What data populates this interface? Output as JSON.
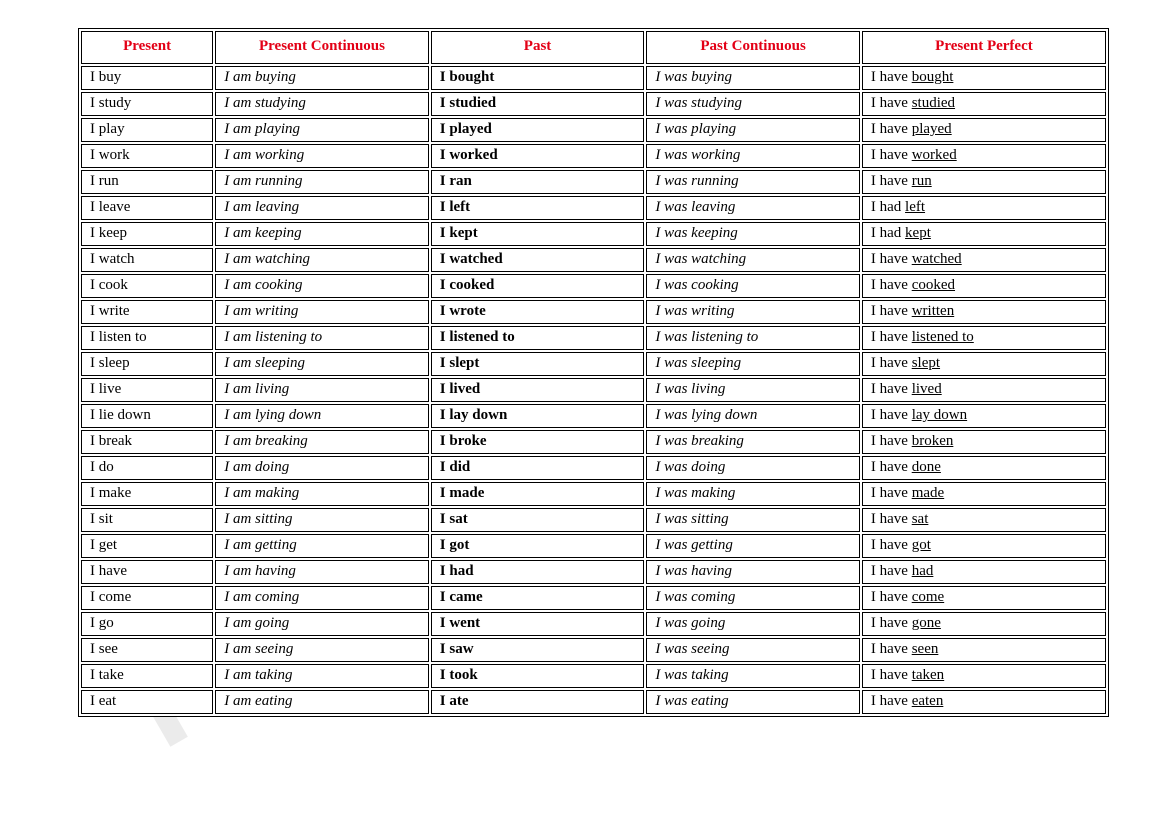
{
  "watermark_text": "Printables.com",
  "table": {
    "headers": [
      "Present",
      "Present Continuous",
      "Past",
      "Past Continuous",
      "Present Perfect"
    ],
    "header_color": "#e30016",
    "font_family": "Comic Sans MS",
    "border_color": "#000000",
    "background_color": "#ffffff",
    "column_styles": [
      {
        "italic": false,
        "bold": false
      },
      {
        "italic": true,
        "bold": false
      },
      {
        "italic": false,
        "bold": true
      },
      {
        "italic": true,
        "bold": false
      },
      {
        "italic": false,
        "bold": false,
        "underline_participle": true
      }
    ],
    "rows": [
      {
        "present": "I buy",
        "pres_cont": "I am buying",
        "past": "I bought",
        "past_cont": "I was buying",
        "perf_aux": "I have",
        "perf_pp": "bought"
      },
      {
        "present": "I study",
        "pres_cont": "I am studying",
        "past": "I studied",
        "past_cont": "I was studying",
        "perf_aux": "I have",
        "perf_pp": "studied"
      },
      {
        "present": "I play",
        "pres_cont": "I am playing",
        "past": "I played",
        "past_cont": "I was playing",
        "perf_aux": "I have",
        "perf_pp": "played"
      },
      {
        "present": "I work",
        "pres_cont": "I am working",
        "past": "I worked",
        "past_cont": "I was working",
        "perf_aux": "I have",
        "perf_pp": "worked"
      },
      {
        "present": "I run",
        "pres_cont": "I am running",
        "past": "I ran",
        "past_cont": "I was running",
        "perf_aux": "I have",
        "perf_pp": "run"
      },
      {
        "present": "I leave",
        "pres_cont": "I am leaving",
        "past": "I left",
        "past_cont": "I was leaving",
        "perf_aux": "I had",
        "perf_pp": "left"
      },
      {
        "present": "I keep",
        "pres_cont": "I am keeping",
        "past": "I kept",
        "past_cont": "I was keeping",
        "perf_aux": "I had",
        "perf_pp": "kept"
      },
      {
        "present": "I watch",
        "pres_cont": "I am watching",
        "past": "I watched",
        "past_cont": "I was watching",
        "perf_aux": "I have",
        "perf_pp": "watched"
      },
      {
        "present": "I cook",
        "pres_cont": "I am cooking",
        "past": "I cooked",
        "past_cont": "I was cooking",
        "perf_aux": "I have",
        "perf_pp": "cooked"
      },
      {
        "present": "I write",
        "pres_cont": "I am writing",
        "past": "I wrote",
        "past_cont": "I was writing",
        "perf_aux": "I have",
        "perf_pp": "written"
      },
      {
        "present": "I listen to",
        "pres_cont": "I am listening to",
        "past": "I listened to",
        "past_cont": "I was listening to",
        "perf_aux": "I have",
        "perf_pp": "listened to"
      },
      {
        "present": "I sleep",
        "pres_cont": "I am sleeping",
        "past": "I slept",
        "past_cont": "I was sleeping",
        "perf_aux": "I have",
        "perf_pp": "slept"
      },
      {
        "present": "I live",
        "pres_cont": "I am living",
        "past": "I lived",
        "past_cont": "I was living",
        "perf_aux": "I have",
        "perf_pp": "lived"
      },
      {
        "present": "I lie down",
        "pres_cont": "I am lying down",
        "past": "I lay down",
        "past_cont": "I was lying down",
        "perf_aux": "I have",
        "perf_pp": "lay down"
      },
      {
        "present": "I break",
        "pres_cont": "I am breaking",
        "past": "I broke",
        "past_cont": "I was breaking",
        "perf_aux": "I have",
        "perf_pp": "broken"
      },
      {
        "present": "I do",
        "pres_cont": "I am doing",
        "past": "I did",
        "past_cont": "I was doing",
        "perf_aux": "I have",
        "perf_pp": "done"
      },
      {
        "present": "I make",
        "pres_cont": "I am making",
        "past": "I made",
        "past_cont": "I was making",
        "perf_aux": "I have",
        "perf_pp": "made"
      },
      {
        "present": "I sit",
        "pres_cont": "I am sitting",
        "past": "I sat",
        "past_cont": "I was sitting",
        "perf_aux": "I have",
        "perf_pp": "sat"
      },
      {
        "present": "I get",
        "pres_cont": "I am getting",
        "past": "I got",
        "past_cont": "I was getting",
        "perf_aux": "I have",
        "perf_pp": "got"
      },
      {
        "present": "I have",
        "pres_cont": "I am having",
        "past": "I had",
        "past_cont": "I was having",
        "perf_aux": "I have",
        "perf_pp": "had"
      },
      {
        "present": "I come",
        "pres_cont": "I am coming",
        "past": "I came",
        "past_cont": "I was coming",
        "perf_aux": "I have",
        "perf_pp": "come"
      },
      {
        "present": "I go",
        "pres_cont": "I am going",
        "past": "I went",
        "past_cont": "I was going",
        "perf_aux": "I have",
        "perf_pp": "gone"
      },
      {
        "present": "I see",
        "pres_cont": "I am seeing",
        "past": "I saw",
        "past_cont": "I was seeing",
        "perf_aux": "I have",
        "perf_pp": "seen"
      },
      {
        "present": "I take",
        "pres_cont": "I am taking",
        "past": "I took",
        "past_cont": "I was taking",
        "perf_aux": "I have",
        "perf_pp": "taken"
      },
      {
        "present": "I eat",
        "pres_cont": "I am eating",
        "past": "I ate",
        "past_cont": "I was eating",
        "perf_aux": "I have",
        "perf_pp": "eaten"
      }
    ]
  }
}
